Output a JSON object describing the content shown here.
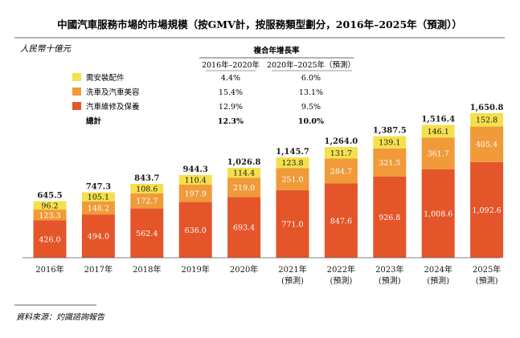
{
  "chart_data": {
    "type": "bar",
    "stacked": true,
    "title": "中國汽車服務市場的市場規模（按GMV計，按服務類型劃分，2016年–2025年（預測））",
    "unit_label": "人民幣十億元",
    "categories": [
      "2016年",
      "2017年",
      "2018年",
      "2019年",
      "2020年",
      "2021年",
      "2022年",
      "2023年",
      "2024年",
      "2025年"
    ],
    "category_notes": [
      "",
      "",
      "",
      "",
      "",
      "(預測)",
      "(預測)",
      "(預測)",
      "(預測)",
      "(預測)"
    ],
    "series": [
      {
        "name": "汽車維修及保養",
        "color": "#e4552a",
        "values": [
          426.0,
          494.0,
          562.4,
          636.0,
          693.4,
          771.0,
          847.6,
          926.8,
          1008.6,
          1092.6
        ],
        "labels": [
          "426.0",
          "494.0",
          "562.4",
          "636.0",
          "693.4",
          "771.0",
          "847.6",
          "926.8",
          "1,008.6",
          "1,092.6"
        ]
      },
      {
        "name": "洗車及汽車美容",
        "color": "#f09a3a",
        "values": [
          123.3,
          148.2,
          172.7,
          197.9,
          219.0,
          251.0,
          284.7,
          321.5,
          361.7,
          405.4
        ],
        "labels": [
          "123.3",
          "148.2",
          "172.7",
          "197.9",
          "219.0",
          "251.0",
          "284.7",
          "321.5",
          "361.7",
          "405.4"
        ]
      },
      {
        "name": "需安裝配件",
        "color": "#f4e04d",
        "values": [
          96.2,
          105.1,
          108.6,
          110.4,
          114.4,
          123.8,
          131.7,
          139.1,
          146.1,
          152.8
        ],
        "labels": [
          "96.2",
          "105.1",
          "108.6",
          "110.4",
          "114.4",
          "123.8",
          "131.7",
          "139.1",
          "146.1",
          "152.8"
        ]
      }
    ],
    "totals": [
      645.5,
      747.3,
      843.7,
      944.3,
      1026.8,
      1145.7,
      1264.0,
      1387.5,
      1516.4,
      1650.8
    ],
    "total_labels": [
      "645.5",
      "747.3",
      "843.7",
      "944.3",
      "1,026.8",
      "1,145.7",
      "1,264.0",
      "1,387.5",
      "1,516.4",
      "1,650.8"
    ],
    "ylim": [
      0,
      1700
    ],
    "legend_placement": "top-left",
    "grid": false
  },
  "cagr_table": {
    "header": "複合年增長率",
    "col1": "2016年–2020年",
    "col2": "2020年–2025年（預測）",
    "rows": [
      {
        "label": "需安裝配件",
        "v1": "4.4%",
        "v2": "6.0%"
      },
      {
        "label": "洗車及汽車美容",
        "v1": "15.4%",
        "v2": "13.1%"
      },
      {
        "label": "汽車維修及保養",
        "v1": "12.9%",
        "v2": "9.5%"
      },
      {
        "label": "總計",
        "v1": "12.3%",
        "v2": "10.0%"
      }
    ]
  },
  "source": "資料來源：灼識諮詢報告"
}
